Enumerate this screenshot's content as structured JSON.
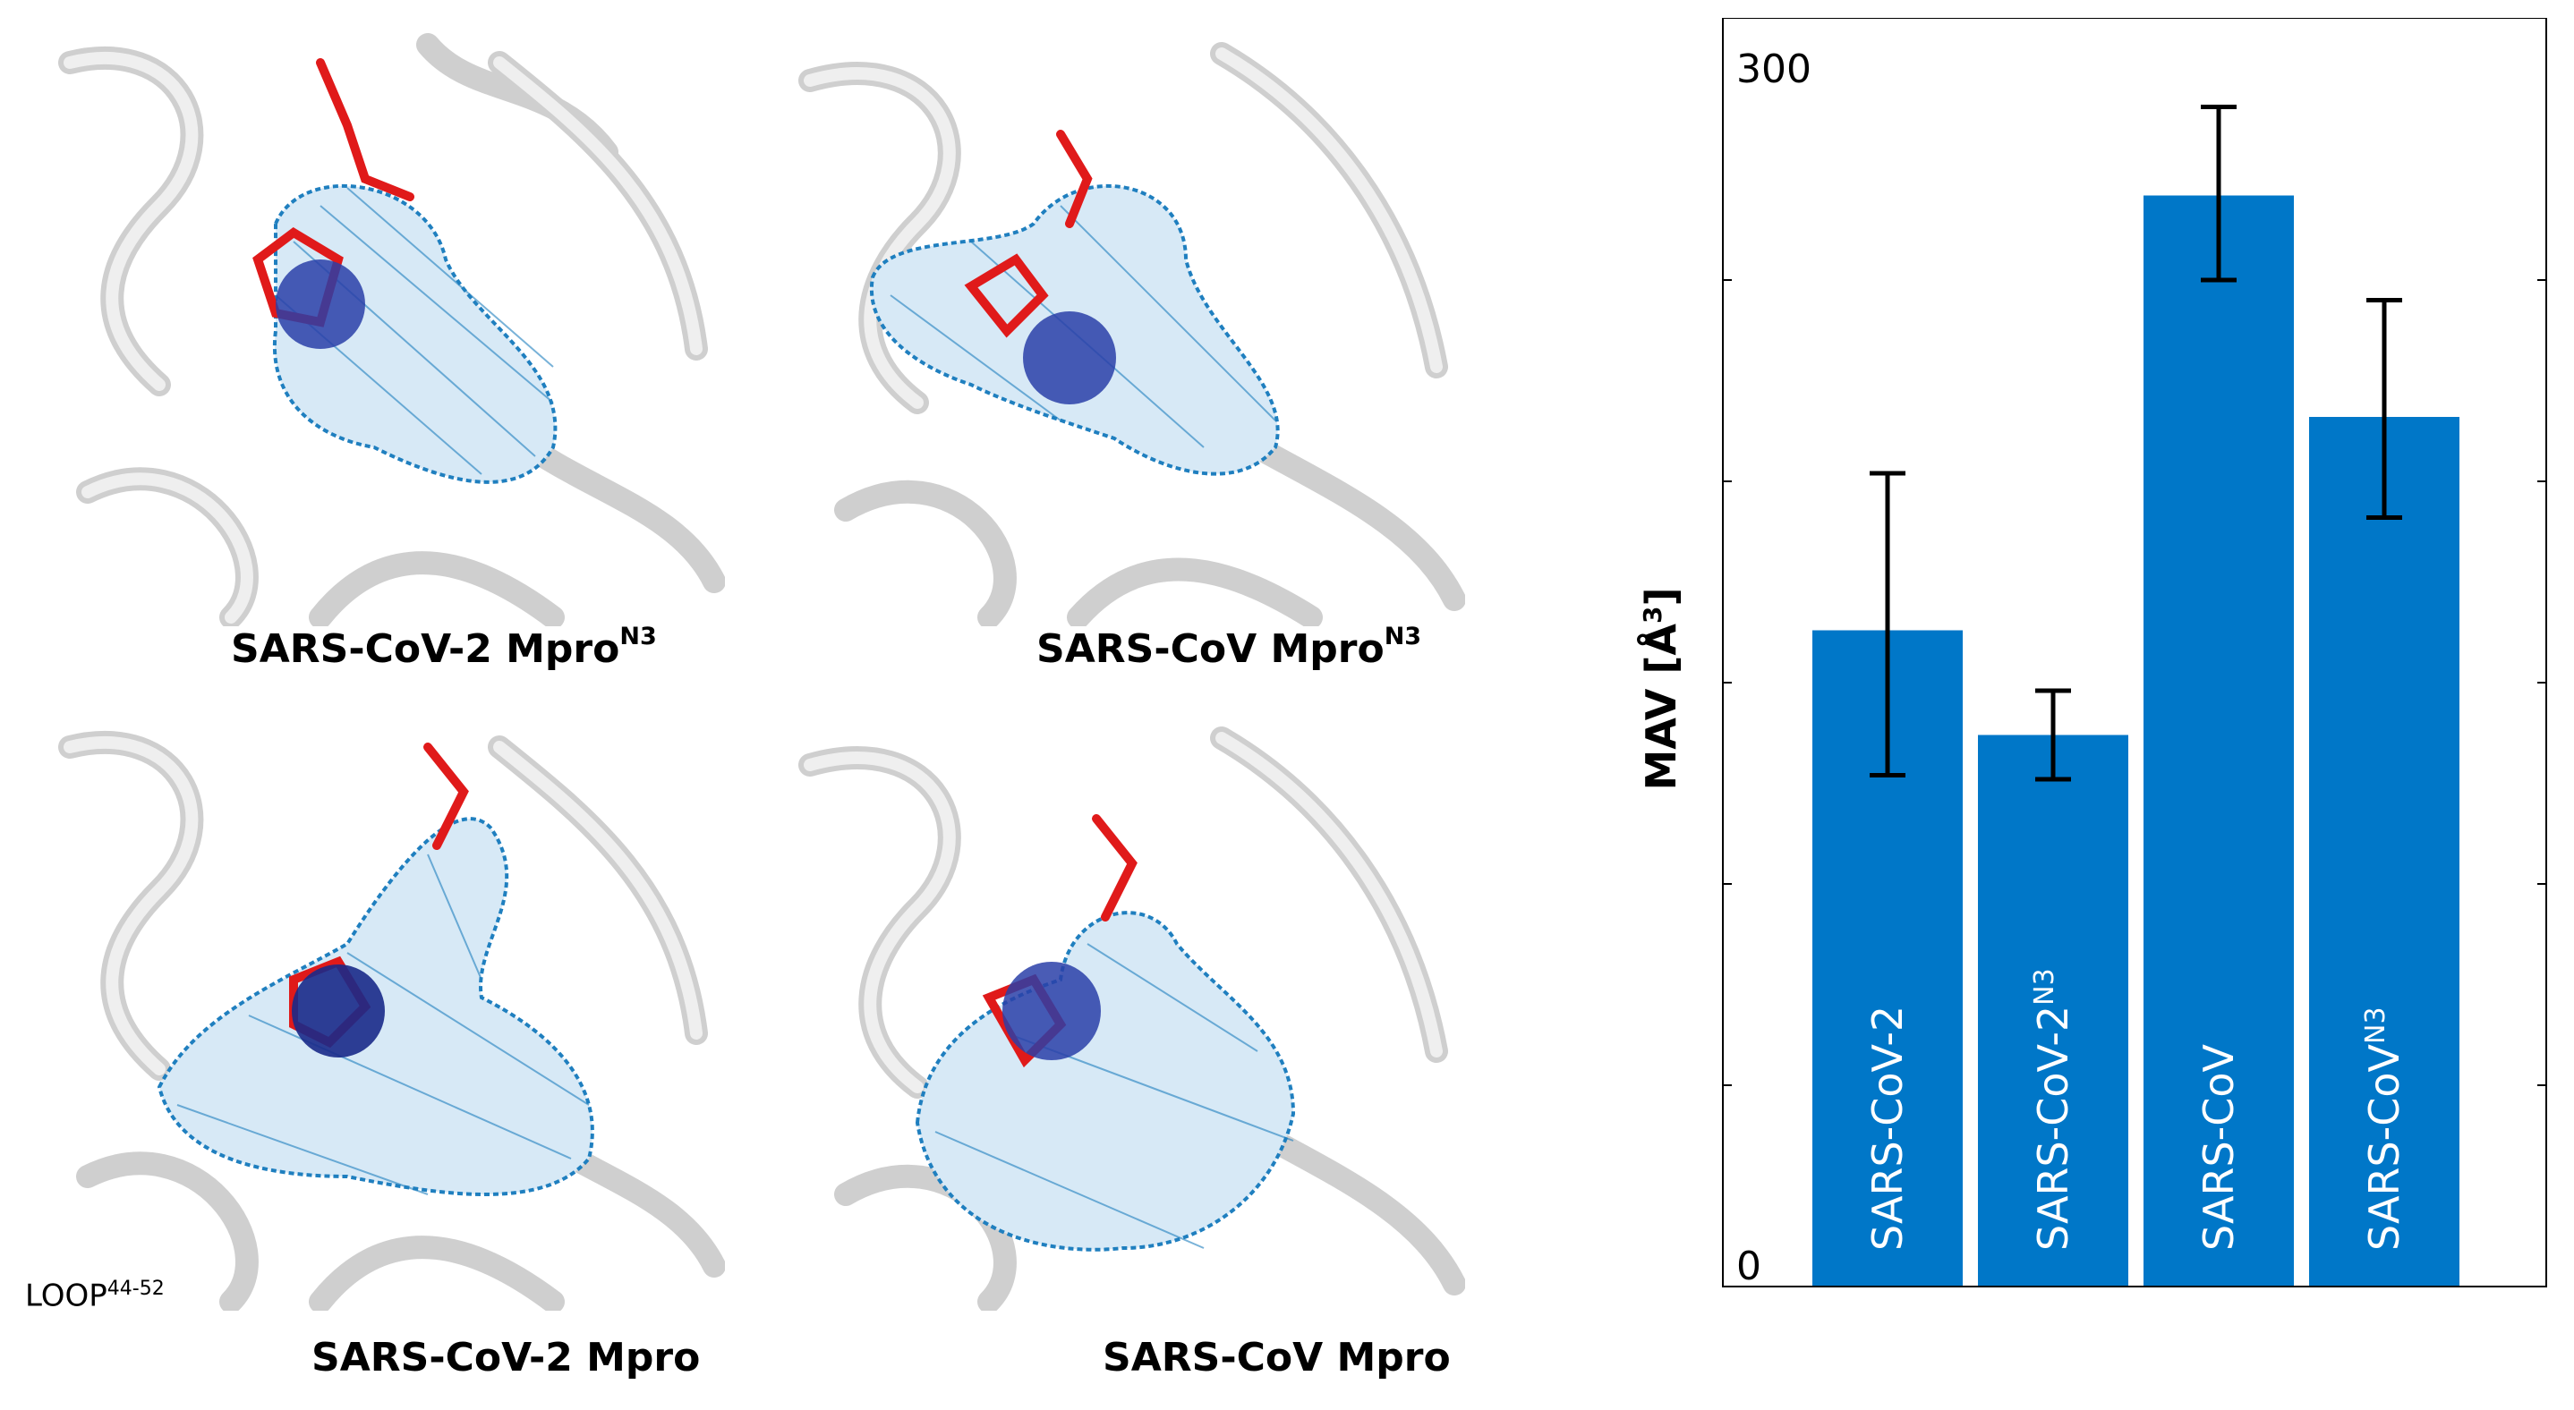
{
  "panels": [
    {
      "label": "SARS-CoV-2 Mpro",
      "sup": "N3"
    },
    {
      "label": "SARS-CoV Mpro",
      "sup": "N3"
    },
    {
      "label": "SARS-CoV-2 Mpro",
      "sup": ""
    },
    {
      "label": "SARS-CoV Mpro",
      "sup": ""
    }
  ],
  "loop_label": {
    "text": "LOOP",
    "sup": "44-52"
  },
  "colors": {
    "bar": "#0077c8",
    "ribbon": "#e2e2e2",
    "mesh": "#1f7fbf",
    "ligand": "#e01a1a",
    "sphere": "#2a3fa8"
  },
  "icons": [
    "protein-ribbon-icon",
    "pocket-mesh-icon",
    "ligand-stick-icon",
    "probe-sphere-icon"
  ],
  "chart_data": {
    "type": "bar",
    "categories": [
      "SARS-CoV-2",
      "SARS-CoV-2",
      "SARS-CoV",
      "SARS-CoV"
    ],
    "category_sups": [
      "",
      "N3",
      "",
      "N3"
    ],
    "values": [
      163,
      137,
      271,
      216
    ],
    "error_low": [
      127,
      126,
      250,
      191
    ],
    "error_high": [
      202,
      148,
      293,
      245
    ],
    "ylabel": "MAV [Å",
    "ylabel_sup": "3",
    "ylabel_close": "]",
    "ylim": [
      0,
      300
    ],
    "tick_labels": [
      {
        "value": 0,
        "text": "0"
      },
      {
        "value": 300,
        "text": "300"
      }
    ],
    "minor_ticks": [
      50,
      100,
      150,
      200,
      250
    ],
    "legend": "none",
    "grid": false
  }
}
